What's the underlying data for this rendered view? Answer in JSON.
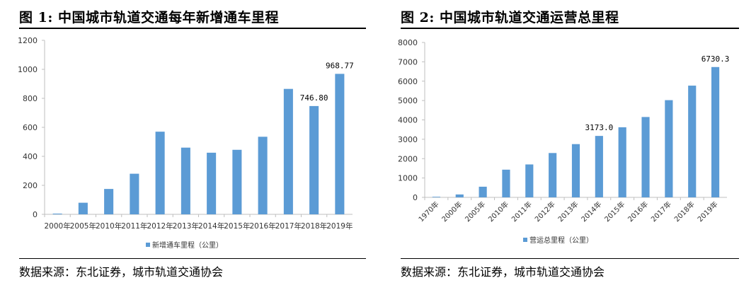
{
  "charts": [
    {
      "figure_title": "图  1:  中国城市轨道交通每年新增通车里程",
      "source": "数据来源：东北证券，城市轨道交通协会",
      "chart_data": {
        "type": "bar",
        "categories": [
          "2000年",
          "2005年",
          "2010年",
          "2011年",
          "2012年",
          "2013年",
          "2014年",
          "2015年",
          "2016年",
          "2017年",
          "2018年",
          "2019年"
        ],
        "series": [
          {
            "name": "新增通车里程（公里）",
            "values": [
              5,
              80,
              175,
              280,
              570,
              460,
              425,
              445,
              535,
              865,
              746.8,
              968.77
            ]
          }
        ],
        "data_labels": [
          {
            "index": 10,
            "text": "746.80"
          },
          {
            "index": 11,
            "text": "968.77"
          }
        ],
        "ylim": [
          0,
          1200
        ],
        "yticks": [
          0,
          200,
          400,
          600,
          800,
          1000,
          1200
        ],
        "xlabel": "",
        "ylabel": "",
        "grid": false,
        "legend": "bottom",
        "bar_color": "#5b9bd5"
      }
    },
    {
      "figure_title": "图  2:  中国城市轨道交通运营总里程",
      "source": "数据来源：东北证券，城市轨道交通协会",
      "chart_data": {
        "type": "bar",
        "categories": [
          "1970年",
          "2000年",
          "2005年",
          "2010年",
          "2011年",
          "2012年",
          "2013年",
          "2014年",
          "2015年",
          "2016年",
          "2017年",
          "2018年",
          "2019年"
        ],
        "series": [
          {
            "name": "营运总里程（公里）",
            "values": [
              30,
              150,
              550,
              1430,
              1700,
              2290,
              2750,
              3173.0,
              3620,
              4150,
              5020,
              5770,
              6730.3
            ]
          }
        ],
        "data_labels": [
          {
            "index": 7,
            "text": "3173.0"
          },
          {
            "index": 12,
            "text": "6730.3"
          }
        ],
        "ylim": [
          0,
          8000
        ],
        "yticks": [
          0,
          1000,
          2000,
          3000,
          4000,
          5000,
          6000,
          7000,
          8000
        ],
        "xlabel": "",
        "ylabel": "",
        "grid": false,
        "legend": "bottom",
        "bar_color": "#5b9bd5",
        "x_tick_rotation": -45
      }
    }
  ]
}
